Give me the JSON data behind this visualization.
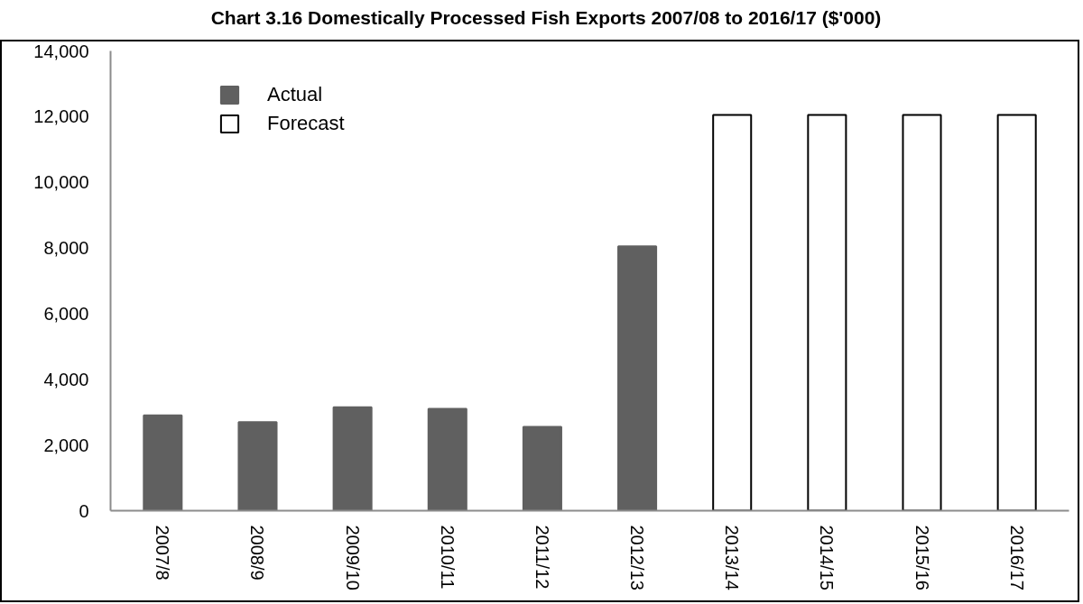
{
  "chart_data": {
    "type": "bar",
    "title": "Chart 3.16 Domestically Processed Fish Exports 2007/08 to 2016/17 ($'000)",
    "categories": [
      "2007/8",
      "2008/9",
      "2009/10",
      "2010/11",
      "2011/12",
      "2012/13",
      "2013/14",
      "2014/15",
      "2015/16",
      "2016/17"
    ],
    "series": [
      {
        "name": "Actual",
        "color": "#606060",
        "values": [
          2900,
          2700,
          3150,
          3100,
          2550,
          8050,
          null,
          null,
          null,
          null
        ]
      },
      {
        "name": "Forecast",
        "color": "#ffffff",
        "values": [
          null,
          null,
          null,
          null,
          null,
          null,
          12050,
          12050,
          12050,
          12050
        ]
      }
    ],
    "ylim": [
      0,
      14000
    ],
    "yticks": [
      0,
      {
        "value": 2000,
        "label": "2,000"
      },
      {
        "value": 4000,
        "label": "4,000"
      },
      {
        "value": 6000,
        "label": "6,000"
      },
      {
        "value": 8000,
        "label": "8,000"
      },
      {
        "value": 10000,
        "label": "10,000"
      },
      {
        "value": 12000,
        "label": "12,000"
      },
      {
        "value": 14000,
        "label": "14,000"
      }
    ],
    "legend": "top left"
  }
}
